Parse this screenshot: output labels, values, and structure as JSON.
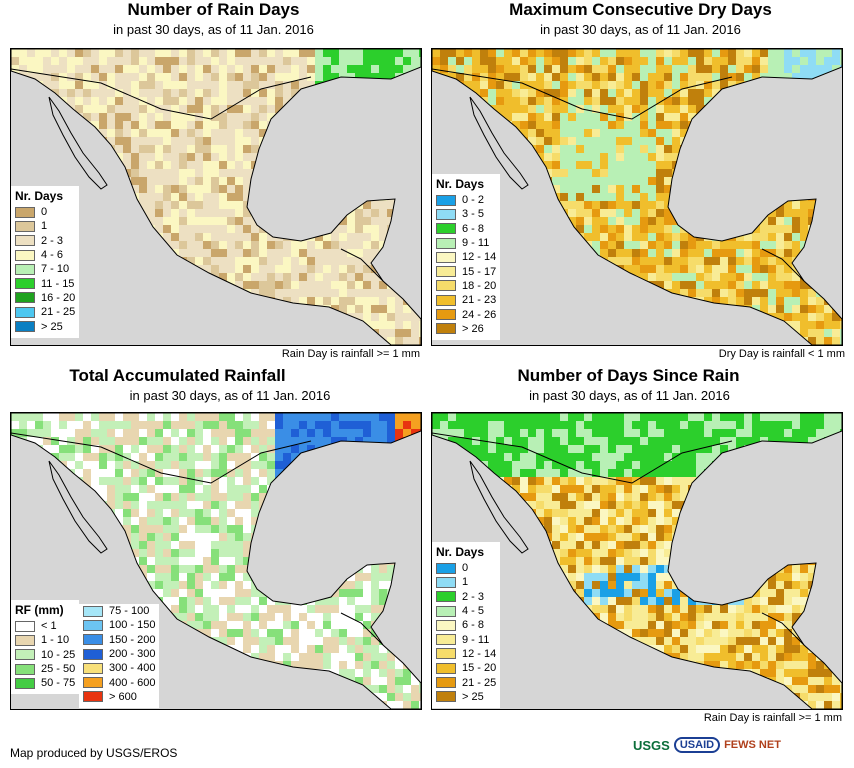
{
  "panels": [
    {
      "title": "Number of Rain Days",
      "subtitle": "in past 30 days, as of 11 Jan. 2016",
      "note": "Rain Day is rainfall >= 1 mm",
      "legend_title": "Nr. Days",
      "legend": [
        {
          "label": "0",
          "color": "#c9a66b"
        },
        {
          "label": "1",
          "color": "#dcc79a"
        },
        {
          "label": "2 - 3",
          "color": "#ede0c2"
        },
        {
          "label": "4 - 6",
          "color": "#fbf7c2"
        },
        {
          "label": "7 - 10",
          "color": "#b8f0b5"
        },
        {
          "label": "11 - 15",
          "color": "#2ccf2c"
        },
        {
          "label": "16 - 20",
          "color": "#1fa21f"
        },
        {
          "label": "21 - 25",
          "color": "#4dc7f0"
        },
        {
          "label": "> 25",
          "color": "#0a7fc2"
        }
      ]
    },
    {
      "title": "Maximum Consecutive Dry Days",
      "subtitle": "in past 30 days, as of 11 Jan. 2016",
      "note": "Dry Day is rainfall < 1 mm",
      "legend_title": "Nr. Days",
      "legend": [
        {
          "label": "0 - 2",
          "color": "#1aa0e6"
        },
        {
          "label": "3 - 5",
          "color": "#8fdcf5"
        },
        {
          "label": "6 - 8",
          "color": "#2ccf2c"
        },
        {
          "label": "9 - 11",
          "color": "#b8f0b5"
        },
        {
          "label": "12 - 14",
          "color": "#fbf7c2"
        },
        {
          "label": "15 - 17",
          "color": "#f8ec96"
        },
        {
          "label": "18 - 20",
          "color": "#f6dc6a"
        },
        {
          "label": "21 - 23",
          "color": "#f0be2c"
        },
        {
          "label": "24 - 26",
          "color": "#e69a10"
        },
        {
          "label": "> 26",
          "color": "#c0800c"
        }
      ]
    },
    {
      "title": "Total Accumulated Rainfall",
      "subtitle": "in past 30 days, as of 11 Jan. 2016",
      "note": "",
      "legend_title": "RF (mm)",
      "legend": [
        {
          "label": "< 1",
          "color": "#ffffff"
        },
        {
          "label": "1 - 10",
          "color": "#e8d6b0"
        },
        {
          "label": "10 - 25",
          "color": "#c3f0b8"
        },
        {
          "label": "25 - 50",
          "color": "#86e07a"
        },
        {
          "label": "50 - 75",
          "color": "#44cc44"
        }
      ],
      "legend2": [
        {
          "label": "75 - 100",
          "color": "#a6e6f7"
        },
        {
          "label": "100 - 150",
          "color": "#6cc4f2"
        },
        {
          "label": "150 - 200",
          "color": "#3a8ee6"
        },
        {
          "label": "200 - 300",
          "color": "#1f5fd6"
        },
        {
          "label": "300 - 400",
          "color": "#f8e07a"
        },
        {
          "label": "400 - 600",
          "color": "#f5a020"
        },
        {
          "label": "> 600",
          "color": "#e83410"
        }
      ]
    },
    {
      "title": "Number of Days Since Rain",
      "subtitle": "in past 30 days, as of 11 Jan. 2016",
      "note": "Rain Day is rainfall >= 1 mm",
      "legend_title": "Nr. Days",
      "legend": [
        {
          "label": "0",
          "color": "#1aa0e6"
        },
        {
          "label": "1",
          "color": "#8fdcf5"
        },
        {
          "label": "2 - 3",
          "color": "#2ccf2c"
        },
        {
          "label": "4 - 5",
          "color": "#b8f0b5"
        },
        {
          "label": "6 - 8",
          "color": "#fbf7c2"
        },
        {
          "label": "9 - 11",
          "color": "#f8ec96"
        },
        {
          "label": "12 - 14",
          "color": "#f6dc6a"
        },
        {
          "label": "15 - 20",
          "color": "#f0be2c"
        },
        {
          "label": "21 - 25",
          "color": "#e69a10"
        },
        {
          "label": "> 25",
          "color": "#c0800c"
        }
      ]
    }
  ],
  "footer": {
    "credit": "Map produced by USGS/EROS",
    "logos": [
      "USGS",
      "USAID",
      "FEWS NET"
    ]
  }
}
